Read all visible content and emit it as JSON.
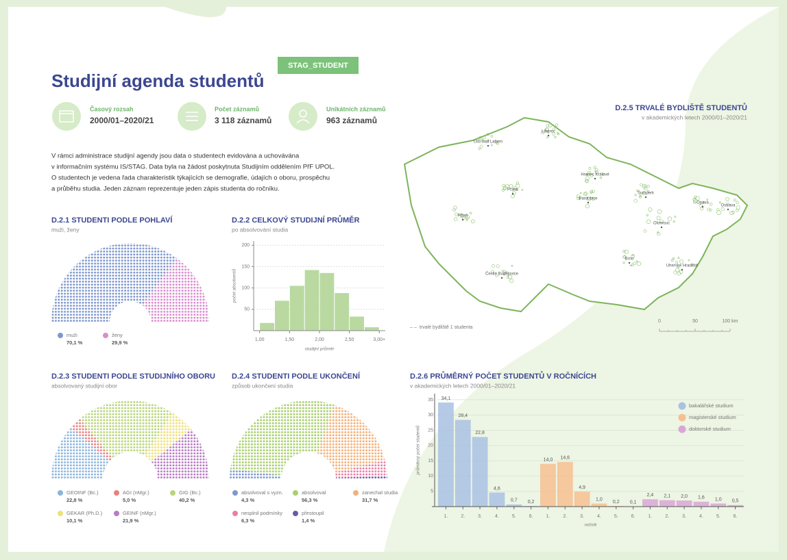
{
  "header": {
    "title": "Studijní agenda studentů",
    "badge": "STAG_STUDENT"
  },
  "stats": [
    {
      "label": "Časový rozsah",
      "value": "2000/01–2020/21"
    },
    {
      "label": "Počet záznamů",
      "value": "3 118  záznamů"
    },
    {
      "label": "Unikátních záznamů",
      "value": "963 záznamů"
    }
  ],
  "description": [
    "V rámci administrace studijní agendy jsou data o studentech evidována a uchovávána",
    "v informačním systému IS/STAG. Data byla na žádost poskytnuta Studijním oddělením PřF UPOL.",
    "O studentech je vedena řada charakteristik týkajících se demografie, údajích o oboru, prospěchu",
    "a průběhu studia. Jeden záznam reprezentuje jeden zápis studenta do ročníku."
  ],
  "map": {
    "title": "D.2.5 TRVALÉ BYDLIŠTĚ STUDENTŮ",
    "subtitle": "v akademických letech 2000/01–2020/21",
    "legend": "trvalé bydliště 1 studenta",
    "scale": [
      "0",
      "50",
      "100 km"
    ],
    "cities": [
      "Liberec",
      "Ústí nad Labem",
      "Hradec Králové",
      "Praha",
      "Pardubice",
      "Šumperk",
      "Opava",
      "Ostrava",
      "Olomouc",
      "Plzeň",
      "Brno",
      "Uherské Hradiště",
      "České Budějovice"
    ]
  },
  "chart_data": [
    {
      "type": "semicircle",
      "title": "D.2.1 STUDENTI PODLE POHLAVÍ",
      "subtitle": "muži, ženy",
      "series": [
        {
          "name": "muži",
          "color": "#7f98cc",
          "values": [
            70.1
          ],
          "value_labels": [
            "70,1 %"
          ]
        },
        {
          "name": "ženy",
          "color": "#d98fcf",
          "values": [
            29.9
          ],
          "value_labels": [
            "29,9 %"
          ]
        }
      ]
    },
    {
      "type": "histogram",
      "title": "D.2.2 CELKOVÝ STUDIJNÍ PRŮMĚR",
      "subtitle": "po absolvování studia",
      "x_label": "studijní průměr",
      "y_label": "počet absolventů",
      "bins": [
        1.0,
        1.25,
        1.5,
        1.75,
        2.0,
        2.25,
        2.5,
        2.75,
        3.0
      ],
      "values": [
        18,
        70,
        105,
        142,
        135,
        88,
        33,
        8
      ],
      "color": "#b9d9a0",
      "xlim": [
        0.9,
        3.1
      ],
      "xticks": [
        {
          "value": 1.0,
          "label": "1,00"
        },
        {
          "value": 1.5,
          "label": "1,50"
        },
        {
          "value": 2.0,
          "label": "2,00"
        },
        {
          "value": 2.5,
          "label": "2,50"
        },
        {
          "value": 3.0,
          "label": "3,00+"
        }
      ],
      "ylim": [
        0,
        210
      ],
      "yticks": [
        50,
        100,
        150,
        200
      ],
      "grid": true
    },
    {
      "type": "semicircle",
      "title": "D.2.3 STUDENTI PODLE STUDIJNÍHO OBORU",
      "subtitle": "absolvovaný studijní obor",
      "series": [
        {
          "name": "GEOINF (Bc.)",
          "color": "#8bb4dc",
          "values": [
            22.8
          ],
          "value_labels": [
            "22,8 %"
          ]
        },
        {
          "name": "AGI (nMgr.)",
          "color": "#e88080",
          "values": [
            5.0
          ],
          "value_labels": [
            "5,0 %"
          ]
        },
        {
          "name": "GIG (Bc.)",
          "color": "#b8d67a",
          "values": [
            40.2
          ],
          "value_labels": [
            "40,2 %"
          ]
        },
        {
          "name": "GEKAR (Ph.D.)",
          "color": "#efe078",
          "values": [
            10.1
          ],
          "value_labels": [
            "10,1 %"
          ]
        },
        {
          "name": "GEINF (nMgr.)",
          "color": "#b87cc4",
          "values": [
            21.9
          ],
          "value_labels": [
            "21,9 %"
          ]
        }
      ]
    },
    {
      "type": "semicircle",
      "title": "D.2.4 STUDENTI PODLE UKONČENÍ",
      "subtitle": "způsob ukončení studia",
      "series": [
        {
          "name": "absolvoval s vyzn.",
          "color": "#7f98cc",
          "values": [
            4.3
          ],
          "value_labels": [
            "4,3 %"
          ]
        },
        {
          "name": "absolvoval",
          "color": "#a9cf6e",
          "values": [
            56.3
          ],
          "value_labels": [
            "56,3 %"
          ]
        },
        {
          "name": "zanechal studia",
          "color": "#f2b07a",
          "values": [
            31.7
          ],
          "value_labels": [
            "31,7 %"
          ]
        },
        {
          "name": "nesplnil podmínky",
          "color": "#e87fa6",
          "values": [
            6.3
          ],
          "value_labels": [
            "6,3 %"
          ]
        },
        {
          "name": "přestoupil",
          "color": "#6a5aa8",
          "values": [
            1.4
          ],
          "value_labels": [
            "1,4 %"
          ]
        }
      ]
    },
    {
      "type": "bar",
      "title": "D.2.6 PRŮMĚRNÝ POČET STUDENTŮ V ROČNÍCÍCH",
      "subtitle": "v akademických letech 2000/01–2020/21",
      "x_label": "ročník",
      "y_label": "průměrný počet studentů",
      "categories": [
        "1.",
        "2.",
        "3.",
        "4.",
        "5.",
        "6."
      ],
      "series": [
        {
          "name": "bakalářské studium",
          "color": "#a9c1e3",
          "values": [
            34.1,
            28.4,
            22.8,
            4.6,
            0.7,
            0.2
          ],
          "value_labels": [
            "34,1",
            "28,4",
            "22,8",
            "4,6",
            "0,7",
            "0,2"
          ]
        },
        {
          "name": "magisterské studium",
          "color": "#f6bf92",
          "values": [
            14.0,
            14.6,
            4.9,
            1.0,
            0.2,
            0.1
          ],
          "value_labels": [
            "14,0",
            "14,6",
            "4,9",
            "1,0",
            "0,2",
            "0,1"
          ]
        },
        {
          "name": "doktorské studium",
          "color": "#d9a6d6",
          "values": [
            2.4,
            2.1,
            2.0,
            1.6,
            1.0,
            0.5
          ],
          "value_labels": [
            "2,4",
            "2,1",
            "2,0",
            "1,6",
            "1,0",
            "0,5"
          ]
        }
      ],
      "ylim": [
        0,
        37
      ],
      "yticks": [
        5,
        10,
        15,
        20,
        25,
        30,
        35
      ],
      "grid": true
    }
  ]
}
